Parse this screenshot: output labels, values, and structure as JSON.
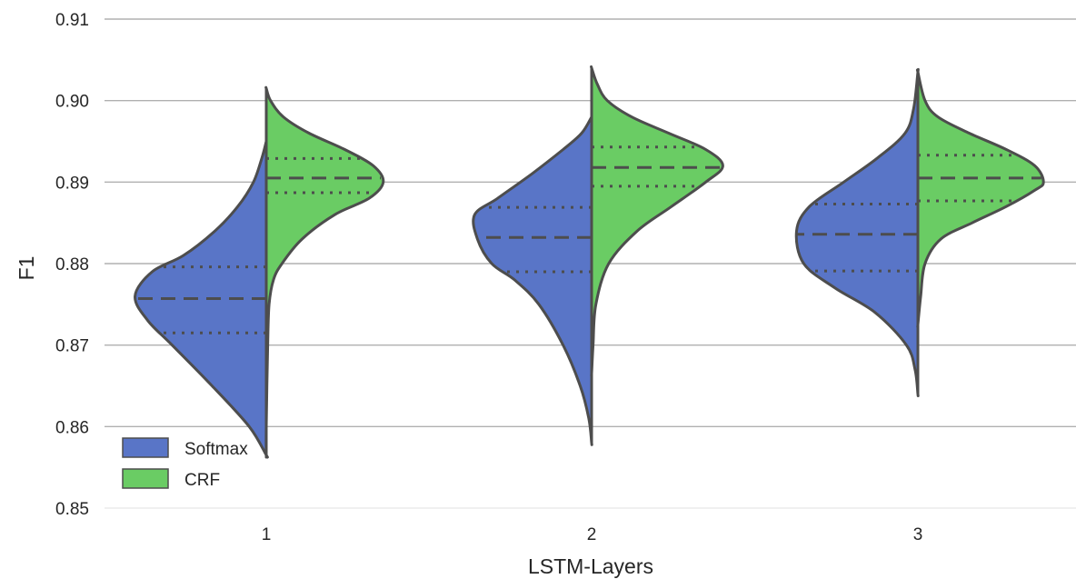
{
  "chart_data": {
    "type": "violin",
    "xlabel": "LSTM-Layers",
    "ylabel": "F1",
    "ylim": [
      0.85,
      0.91
    ],
    "yticks": [
      "0.85",
      "0.86",
      "0.87",
      "0.88",
      "0.89",
      "0.90",
      "0.91"
    ],
    "categories": [
      "1",
      "2",
      "3"
    ],
    "grid": "horizontal",
    "legend_position": "bottom-left",
    "series": [
      {
        "name": "Softmax",
        "color": "#5975c7",
        "side": "left",
        "violins": [
          {
            "category": "1",
            "min": 0.8565,
            "max": 0.895,
            "q1": 0.8715,
            "median": 0.8757,
            "q3": 0.8796,
            "profile": [
              [
                0.8565,
                0.0
              ],
              [
                0.86,
                0.12
              ],
              [
                0.865,
                0.38
              ],
              [
                0.87,
                0.66
              ],
              [
                0.873,
                0.83
              ],
              [
                0.876,
                0.92
              ],
              [
                0.879,
                0.8
              ],
              [
                0.881,
                0.58
              ],
              [
                0.884,
                0.36
              ],
              [
                0.887,
                0.2
              ],
              [
                0.89,
                0.09
              ],
              [
                0.893,
                0.03
              ],
              [
                0.895,
                0.0
              ]
            ]
          },
          {
            "category": "2",
            "min": 0.858,
            "max": 0.898,
            "q1": 0.879,
            "median": 0.8832,
            "q3": 0.8869,
            "profile": [
              [
                0.858,
                0.0
              ],
              [
                0.861,
                0.02
              ],
              [
                0.865,
                0.08
              ],
              [
                0.87,
                0.2
              ],
              [
                0.875,
                0.37
              ],
              [
                0.878,
                0.54
              ],
              [
                0.88,
                0.7
              ],
              [
                0.883,
                0.8
              ],
              [
                0.886,
                0.82
              ],
              [
                0.888,
                0.66
              ],
              [
                0.891,
                0.42
              ],
              [
                0.894,
                0.2
              ],
              [
                0.896,
                0.07
              ],
              [
                0.898,
                0.0
              ]
            ]
          },
          {
            "category": "3",
            "min": 0.864,
            "max": 0.9035,
            "q1": 0.8791,
            "median": 0.8836,
            "q3": 0.8873,
            "profile": [
              [
                0.864,
                0.0
              ],
              [
                0.867,
                0.02
              ],
              [
                0.87,
                0.08
              ],
              [
                0.874,
                0.3
              ],
              [
                0.877,
                0.58
              ],
              [
                0.88,
                0.8
              ],
              [
                0.884,
                0.85
              ],
              [
                0.887,
                0.76
              ],
              [
                0.89,
                0.52
              ],
              [
                0.893,
                0.28
              ],
              [
                0.896,
                0.09
              ],
              [
                0.899,
                0.03
              ],
              [
                0.9035,
                0.0
              ]
            ]
          }
        ]
      },
      {
        "name": "CRF",
        "color": "#6acc64",
        "side": "right",
        "violins": [
          {
            "category": "1",
            "min": 0.8565,
            "max": 0.9015,
            "q1": 0.8887,
            "median": 0.8905,
            "q3": 0.8929,
            "profile": [
              [
                0.8565,
                0.0
              ],
              [
                0.86,
                0.0
              ],
              [
                0.87,
                0.01
              ],
              [
                0.875,
                0.02
              ],
              [
                0.878,
                0.05
              ],
              [
                0.88,
                0.11
              ],
              [
                0.883,
                0.25
              ],
              [
                0.886,
                0.48
              ],
              [
                0.888,
                0.72
              ],
              [
                0.89,
                0.82
              ],
              [
                0.892,
                0.75
              ],
              [
                0.894,
                0.55
              ],
              [
                0.896,
                0.3
              ],
              [
                0.898,
                0.12
              ],
              [
                0.9,
                0.03
              ],
              [
                0.9015,
                0.0
              ]
            ]
          },
          {
            "category": "2",
            "min": 0.8665,
            "max": 0.904,
            "q1": 0.8895,
            "median": 0.8918,
            "q3": 0.8943,
            "profile": [
              [
                0.8665,
                0.0
              ],
              [
                0.87,
                0.01
              ],
              [
                0.875,
                0.03
              ],
              [
                0.88,
                0.12
              ],
              [
                0.884,
                0.32
              ],
              [
                0.887,
                0.56
              ],
              [
                0.89,
                0.8
              ],
              [
                0.892,
                0.92
              ],
              [
                0.894,
                0.8
              ],
              [
                0.896,
                0.54
              ],
              [
                0.898,
                0.28
              ],
              [
                0.9,
                0.11
              ],
              [
                0.902,
                0.04
              ],
              [
                0.904,
                0.0
              ]
            ]
          },
          {
            "category": "3",
            "min": 0.8725,
            "max": 0.9035,
            "q1": 0.8877,
            "median": 0.8905,
            "q3": 0.8933,
            "profile": [
              [
                0.8725,
                0.0
              ],
              [
                0.876,
                0.02
              ],
              [
                0.88,
                0.05
              ],
              [
                0.883,
                0.16
              ],
              [
                0.885,
                0.38
              ],
              [
                0.887,
                0.62
              ],
              [
                0.889,
                0.82
              ],
              [
                0.89,
                0.88
              ],
              [
                0.892,
                0.82
              ],
              [
                0.894,
                0.62
              ],
              [
                0.896,
                0.36
              ],
              [
                0.898,
                0.14
              ],
              [
                0.9,
                0.05
              ],
              [
                0.9035,
                0.0
              ]
            ]
          }
        ]
      }
    ]
  },
  "colors": {
    "gridline": "#b0b0b0",
    "outline": "#4d4d4d"
  }
}
